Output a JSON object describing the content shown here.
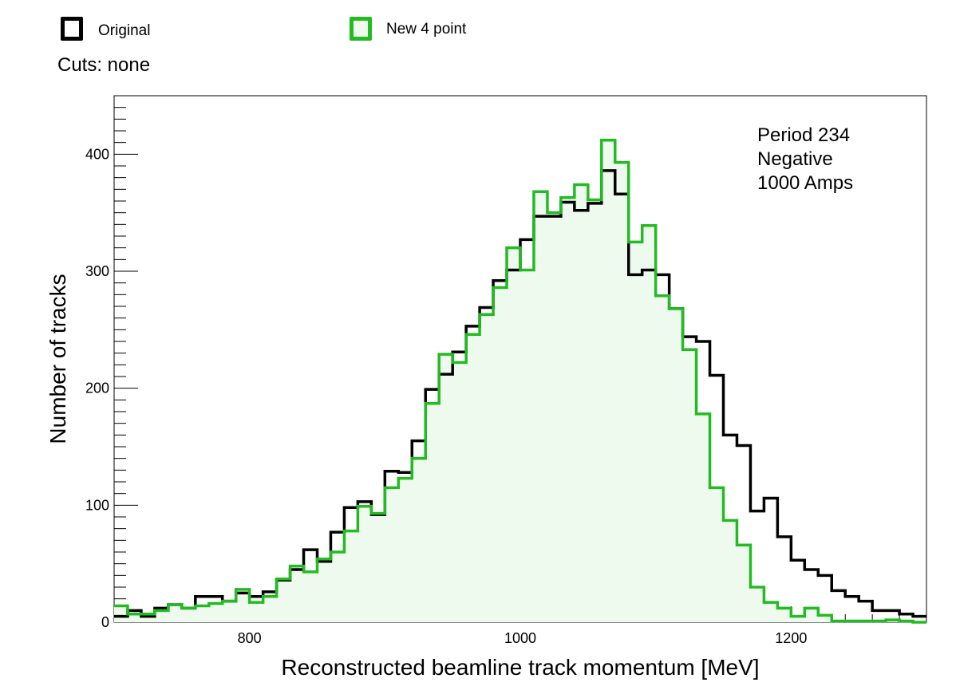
{
  "legend": {
    "entries": [
      {
        "label": "Original",
        "color": "#000000"
      },
      {
        "label": "New 4 point",
        "color": "#22bb22"
      }
    ]
  },
  "cuts_text": "Cuts: none",
  "annotation": [
    "Period 234",
    "Negative",
    "1000 Amps"
  ],
  "colors": {
    "original": "#000000",
    "new": "#22bb22",
    "new_fill": "#eefaee"
  },
  "chart_data": {
    "type": "histogram",
    "title": "",
    "xlabel": "Reconstructed beamline track momentum [MeV]",
    "ylabel": "Number of tracks",
    "xlim": [
      700,
      1300
    ],
    "ylim": [
      0,
      450
    ],
    "x_ticks": [
      800,
      1000,
      1200
    ],
    "y_ticks": [
      0,
      100,
      200,
      300,
      400
    ],
    "bin_edges": [
      700,
      710,
      720,
      730,
      740,
      750,
      760,
      770,
      780,
      790,
      800,
      810,
      820,
      830,
      840,
      850,
      860,
      870,
      880,
      890,
      900,
      910,
      920,
      930,
      940,
      950,
      960,
      970,
      980,
      990,
      1000,
      1010,
      1020,
      1030,
      1040,
      1050,
      1060,
      1070,
      1080,
      1090,
      1100,
      1110,
      1120,
      1130,
      1140,
      1150,
      1160,
      1170,
      1180,
      1190,
      1200,
      1210,
      1220,
      1230,
      1240,
      1250,
      1260,
      1270,
      1280,
      1290,
      1300
    ],
    "series": [
      {
        "name": "Original",
        "values": [
          5,
          10,
          5,
          12,
          15,
          12,
          22,
          22,
          18,
          25,
          22,
          26,
          36,
          45,
          62,
          52,
          77,
          98,
          103,
          92,
          129,
          128,
          155,
          199,
          212,
          231,
          253,
          269,
          292,
          301,
          327,
          347,
          347,
          359,
          352,
          358,
          386,
          366,
          297,
          301,
          297,
          268,
          244,
          240,
          211,
          160,
          151,
          95,
          106,
          73,
          53,
          45,
          40,
          27,
          22,
          18,
          10,
          10,
          7,
          5
        ]
      },
      {
        "name": "New 4 point",
        "values": [
          14,
          7,
          7,
          10,
          15,
          12,
          14,
          16,
          18,
          28,
          17,
          22,
          37,
          48,
          43,
          54,
          60,
          78,
          99,
          93,
          115,
          123,
          140,
          187,
          229,
          222,
          246,
          263,
          286,
          320,
          301,
          368,
          350,
          363,
          374,
          361,
          412,
          393,
          325,
          339,
          279,
          268,
          233,
          178,
          115,
          87,
          66,
          30,
          17,
          12,
          5,
          12,
          6,
          1,
          1,
          1,
          1,
          2,
          1,
          0
        ]
      }
    ]
  }
}
